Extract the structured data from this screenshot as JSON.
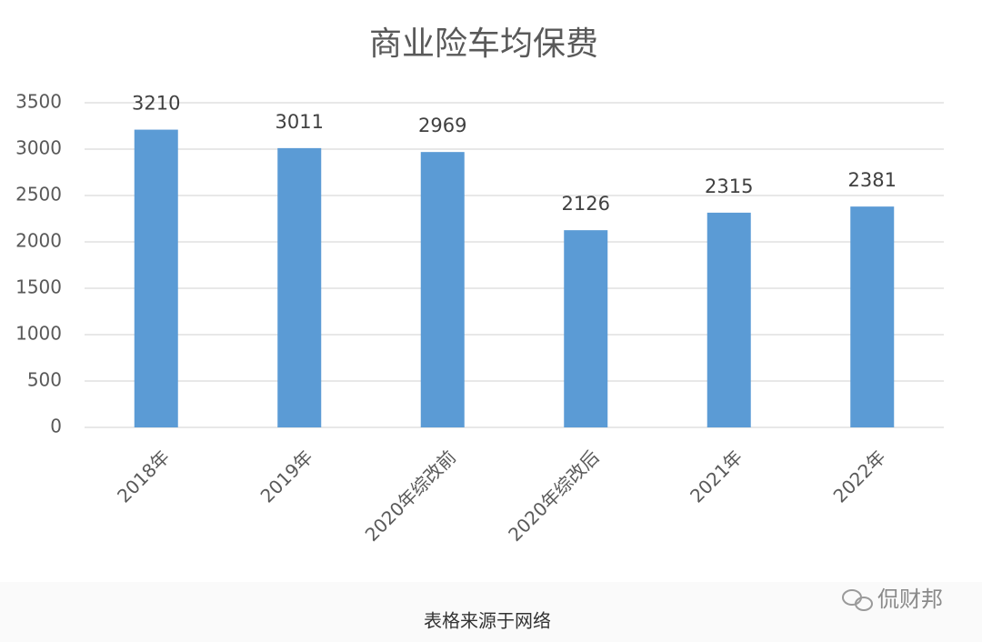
{
  "chart_data": {
    "type": "bar",
    "title": "商业险车均保费",
    "categories": [
      "2018年",
      "2019年",
      "2020年综改前",
      "2020年综改后",
      "2021年",
      "2022年"
    ],
    "values": [
      3210,
      3011,
      2969,
      2126,
      2315,
      2381
    ],
    "color": "#5b9bd5",
    "ylim": [
      0,
      3500
    ],
    "yticks": [
      0,
      500,
      1000,
      1500,
      2000,
      2500,
      3000,
      3500
    ],
    "grid": true
  },
  "caption": "表格来源于网络",
  "watermark": "侃财邦"
}
